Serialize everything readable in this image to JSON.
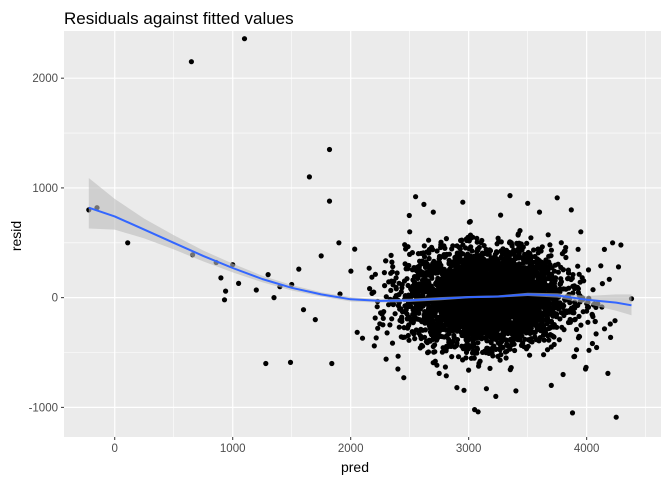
{
  "chart_data": {
    "type": "scatter",
    "title": "Residuals against fitted values",
    "xlabel": "pred",
    "ylabel": "resid",
    "xlim": [
      -430,
      4630
    ],
    "ylim": [
      -1270,
      2430
    ],
    "x_ticks": [
      0,
      1000,
      2000,
      3000,
      4000
    ],
    "y_ticks": [
      -1000,
      0,
      1000,
      2000
    ],
    "x_tick_labels": [
      "0",
      "1000",
      "2000",
      "3000",
      "4000"
    ],
    "y_tick_labels": [
      "-1000",
      "0",
      "1000",
      "2000"
    ],
    "grid": true,
    "panel_background": "#ebebeb",
    "grid_color": "#ffffff",
    "point_color": "#000000",
    "smooth_line_color": "#3366ff",
    "ribbon_color": "#bdbdbd",
    "points": [
      {
        "x": -220,
        "y": 800
      },
      {
        "x": -150,
        "y": 820
      },
      {
        "x": 110,
        "y": 500
      },
      {
        "x": 650,
        "y": 2150
      },
      {
        "x": 1100,
        "y": 2360
      },
      {
        "x": 1820,
        "y": 1350
      },
      {
        "x": 1650,
        "y": 1100
      },
      {
        "x": 1820,
        "y": 880
      },
      {
        "x": 1280,
        "y": -600
      },
      {
        "x": 1490,
        "y": -590
      },
      {
        "x": 1840,
        "y": -600
      },
      {
        "x": 660,
        "y": 390
      },
      {
        "x": 860,
        "y": 320
      },
      {
        "x": 1000,
        "y": 300
      },
      {
        "x": 900,
        "y": 180
      },
      {
        "x": 940,
        "y": 60
      },
      {
        "x": 930,
        "y": -20
      },
      {
        "x": 1050,
        "y": 130
      },
      {
        "x": 1200,
        "y": 70
      },
      {
        "x": 1350,
        "y": 0
      },
      {
        "x": 1400,
        "y": 100
      },
      {
        "x": 1500,
        "y": 120
      },
      {
        "x": 1300,
        "y": 210
      },
      {
        "x": 1560,
        "y": 260
      },
      {
        "x": 1600,
        "y": -110
      },
      {
        "x": 1700,
        "y": -200
      },
      {
        "x": 1750,
        "y": 380
      },
      {
        "x": 1900,
        "y": 500
      },
      {
        "x": 2100,
        "y": -370
      },
      {
        "x": 2200,
        "y": -440
      },
      {
        "x": 2300,
        "y": -560
      },
      {
        "x": 2400,
        "y": -650
      },
      {
        "x": 2450,
        "y": -730
      },
      {
        "x": 2550,
        "y": 920
      },
      {
        "x": 2900,
        "y": -820
      },
      {
        "x": 3050,
        "y": -1020
      },
      {
        "x": 3080,
        "y": -1040
      },
      {
        "x": 3230,
        "y": -900
      },
      {
        "x": 3350,
        "y": 930
      },
      {
        "x": 3750,
        "y": 910
      },
      {
        "x": 3870,
        "y": 800
      },
      {
        "x": 3880,
        "y": -1050
      },
      {
        "x": 4180,
        "y": -690
      },
      {
        "x": 4250,
        "y": -1090
      },
      {
        "x": 4220,
        "y": 500
      },
      {
        "x": 4290,
        "y": 480
      },
      {
        "x": 4270,
        "y": 280
      },
      {
        "x": 4200,
        "y": -240
      },
      {
        "x": 4080,
        "y": -330
      },
      {
        "x": 4120,
        "y": 290
      },
      {
        "x": 4380,
        "y": -10
      },
      {
        "x": 4150,
        "y": 440
      },
      {
        "x": 4020,
        "y": -480
      },
      {
        "x": 2620,
        "y": 850
      },
      {
        "x": 2700,
        "y": 780
      },
      {
        "x": 2950,
        "y": 870
      },
      {
        "x": 3500,
        "y": 860
      },
      {
        "x": 3600,
        "y": 780
      },
      {
        "x": 3950,
        "y": 600
      },
      {
        "x": 3990,
        "y": -650
      },
      {
        "x": 2750,
        "y": -690
      },
      {
        "x": 3400,
        "y": -850
      },
      {
        "x": 3700,
        "y": -800
      },
      {
        "x": 2500,
        "y": 600
      },
      {
        "x": 3150,
        "y": -830
      },
      {
        "x": 3800,
        "y": -700
      }
    ],
    "cloud": {
      "count": 4200,
      "x_mean": 3150,
      "x_sd": 330,
      "x_min": 1850,
      "x_max": 4350,
      "y_sd": 210,
      "y_min": -900,
      "y_max": 920
    },
    "smooth": {
      "x": [
        -220,
        0,
        250,
        500,
        750,
        1000,
        1250,
        1500,
        1750,
        2000,
        2250,
        2500,
        2750,
        3000,
        3250,
        3500,
        3750,
        4000,
        4250,
        4380
      ],
      "y": [
        820,
        740,
        620,
        500,
        380,
        270,
        170,
        90,
        30,
        -15,
        -30,
        -25,
        -10,
        5,
        10,
        30,
        20,
        -20,
        -45,
        -70
      ],
      "lower": [
        630,
        620,
        540,
        440,
        330,
        230,
        140,
        65,
        10,
        -35,
        -45,
        -40,
        -25,
        -5,
        0,
        15,
        0,
        -55,
        -120,
        -160
      ],
      "upper": [
        1090,
        900,
        720,
        570,
        430,
        310,
        200,
        115,
        50,
        5,
        -15,
        -10,
        5,
        15,
        20,
        45,
        40,
        15,
        30,
        30
      ]
    }
  }
}
